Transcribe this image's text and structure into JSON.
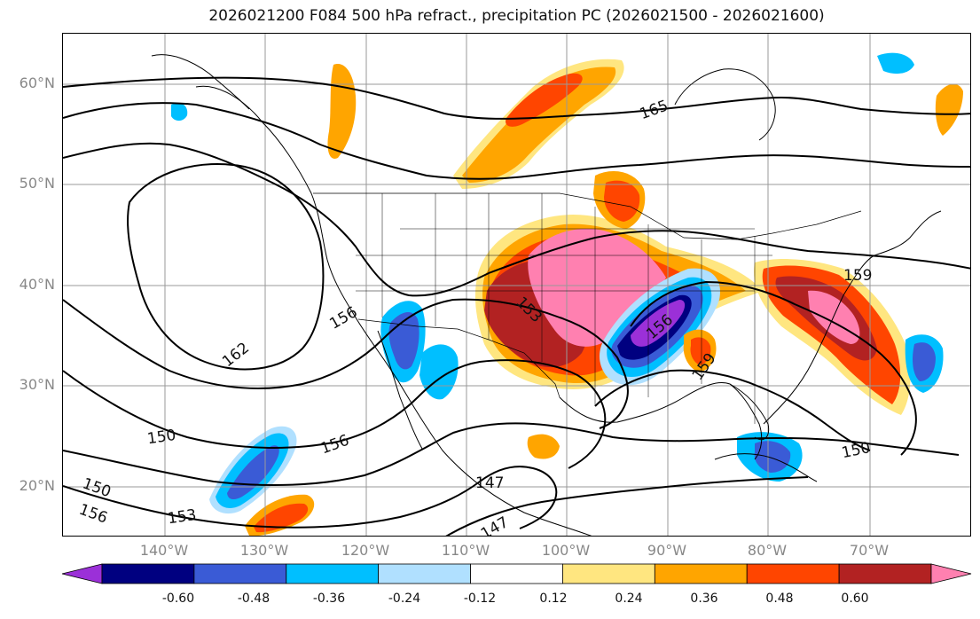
{
  "title": "2026021200 F084 500 hPa refract., precipitation PC (2026021500 - 2026021600)",
  "lat_labels": [
    "60°N",
    "50°N",
    "40°N",
    "30°N",
    "20°N"
  ],
  "lon_labels": [
    "140°W",
    "130°W",
    "120°W",
    "110°W",
    "100°W",
    "90°W",
    "80°W",
    "70°W"
  ],
  "colorbar": {
    "ticks": [
      "-0.60",
      "-0.48",
      "-0.36",
      "-0.24",
      "-0.12",
      "0.12",
      "0.24",
      "0.36",
      "0.48",
      "0.60"
    ],
    "colors": [
      "#9b30d8",
      "#000080",
      "#3a5bd6",
      "#00bfff",
      "#b0e0ff",
      "#ffffff",
      "#ffe680",
      "#ffa500",
      "#ff4500",
      "#b22222",
      "#ff80b0"
    ]
  },
  "contour_labels": [
    {
      "text": "165"
    },
    {
      "text": "162"
    },
    {
      "text": "159"
    },
    {
      "text": "159"
    },
    {
      "text": "156"
    },
    {
      "text": "156"
    },
    {
      "text": "156"
    },
    {
      "text": "153"
    },
    {
      "text": "153"
    },
    {
      "text": "150"
    },
    {
      "text": "150"
    },
    {
      "text": "150"
    },
    {
      "text": "147"
    },
    {
      "text": "147"
    }
  ]
}
